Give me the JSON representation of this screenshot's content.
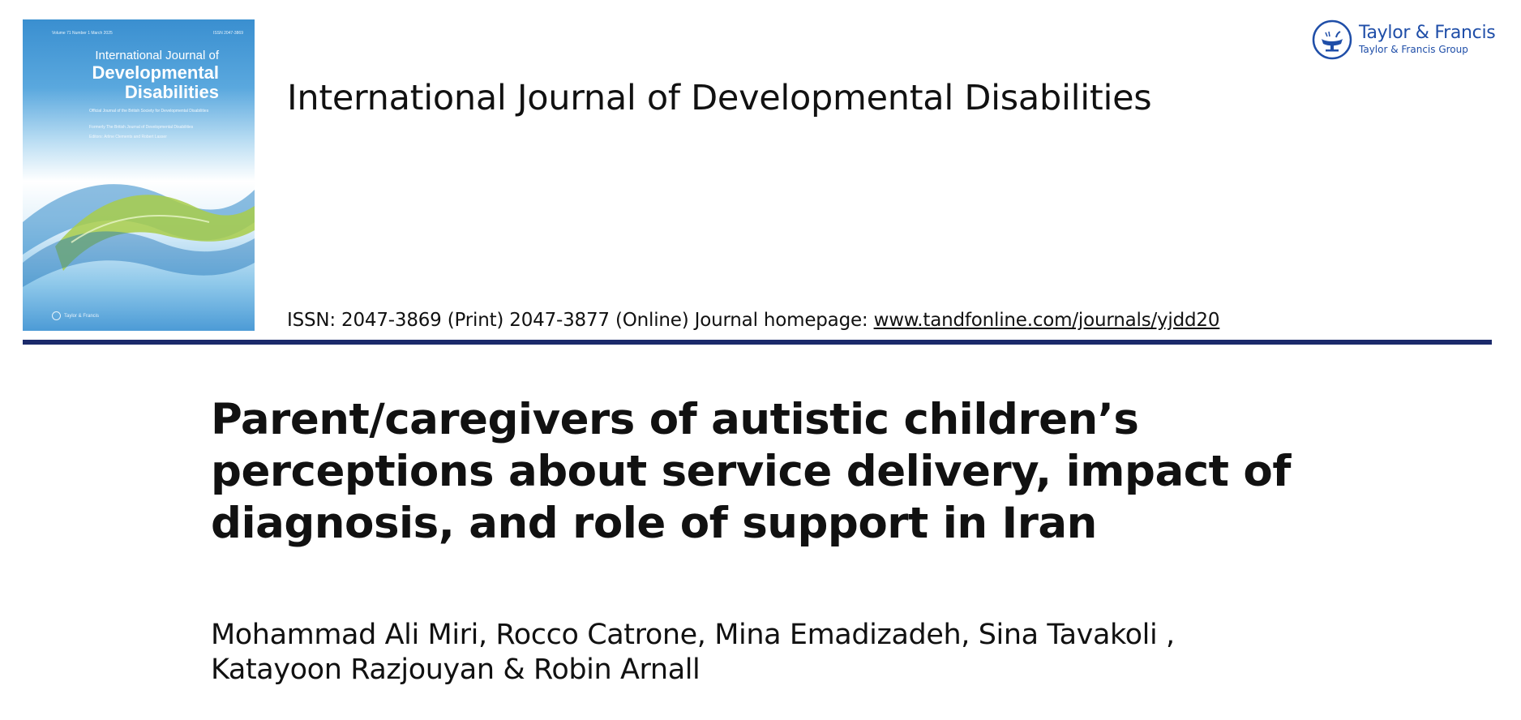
{
  "cover": {
    "issue_line": "Volume 71 Number 1 March 2025",
    "issn": "ISSN 2047-3869",
    "title_line1": "International Journal of",
    "title_line2": "Developmental",
    "title_line3": "Disabilities",
    "subtitle1": "Official Journal of the British Society for Developmental Disabilities",
    "subtitle2": "Formerly The British Journal of Developmental Disabilities",
    "subtitle3": "Editors: Arline Clements and Robert Lasser",
    "publisher": "Taylor & Francis"
  },
  "header": {
    "journal_title": "International Journal of Developmental Disabilities",
    "issn_text": "ISSN: 2047-3869 (Print) 2047-3877 (Online) Journal homepage: ",
    "homepage_link": "www.tandfonline.com/journals/yjdd20"
  },
  "publisher_logo": {
    "name": "Taylor & Francis",
    "group": "Taylor & Francis Group",
    "color": "#1f4ea8"
  },
  "article": {
    "title": "Parent/caregivers of autistic children’s perceptions about service delivery, impact of diagnosis, and role of support in Iran",
    "authors_line1": "Mohammad Ali Miri, Rocco Catrone, Mina Emadizadeh, Sina Tavakoli ,",
    "authors_line2": "Katayoon Razjouyan & Robin Arnall"
  },
  "colors": {
    "rule": "#1b2a6b",
    "cover_blue": "#3a8fd0",
    "cover_green": "#a8cc4a"
  }
}
